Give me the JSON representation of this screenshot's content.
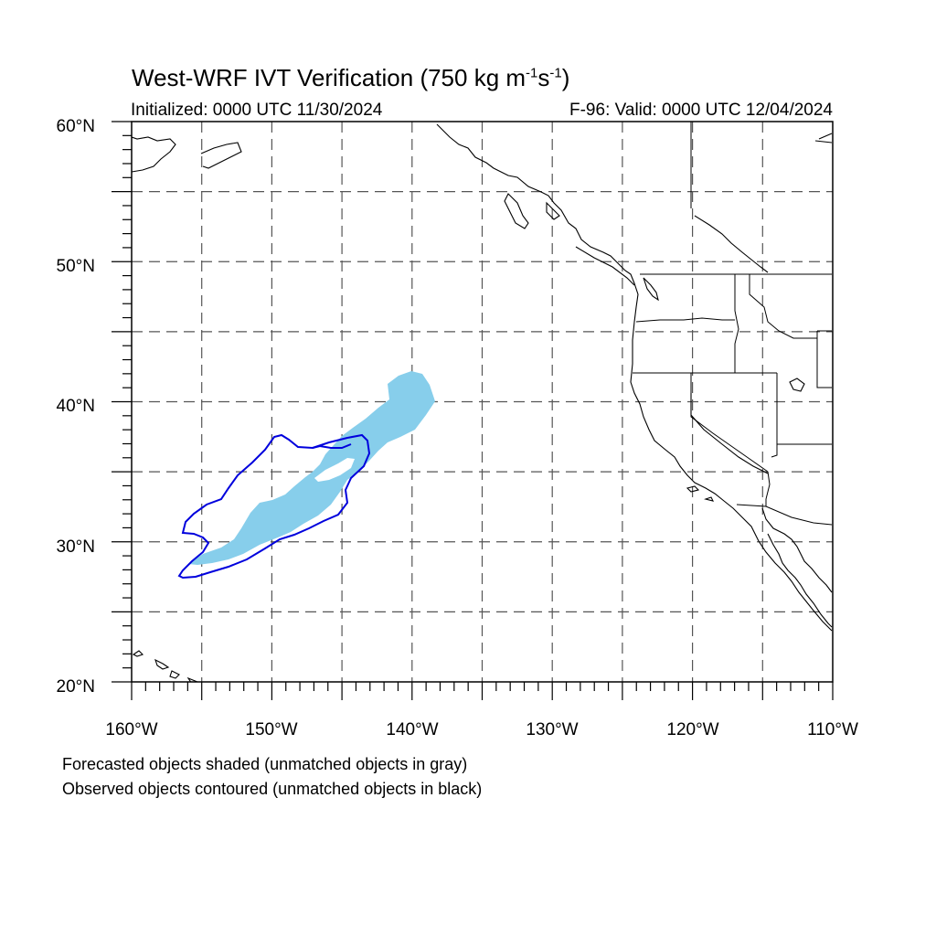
{
  "title": {
    "main": "West-WRF IVT Verification (750 kg m",
    "sup1": "-1",
    "mid": "s",
    "sup2": "-1",
    "close": ")"
  },
  "initialized": "Initialized: 0000 UTC 11/30/2024",
  "valid": "F-96: Valid: 0000 UTC 12/04/2024",
  "map": {
    "lon_range": [
      -160,
      -110
    ],
    "lat_range": [
      20,
      60
    ],
    "grid_style": "dashed",
    "lat_labels": [
      "20°N",
      "30°N",
      "40°N",
      "50°N",
      "60°N"
    ],
    "lon_labels": [
      "160°W",
      "150°W",
      "140°W",
      "130°W",
      "120°W",
      "110°W"
    ],
    "colors": {
      "forecast_fill": "#87ceeb",
      "observed_contour": "#0000dd",
      "coastline": "#000000",
      "grid": "#555555"
    }
  },
  "captions": {
    "forecast": "Forecasted objects shaded (unmatched objects in gray)",
    "observed": "Observed objects contoured (unmatched objects in black)"
  }
}
